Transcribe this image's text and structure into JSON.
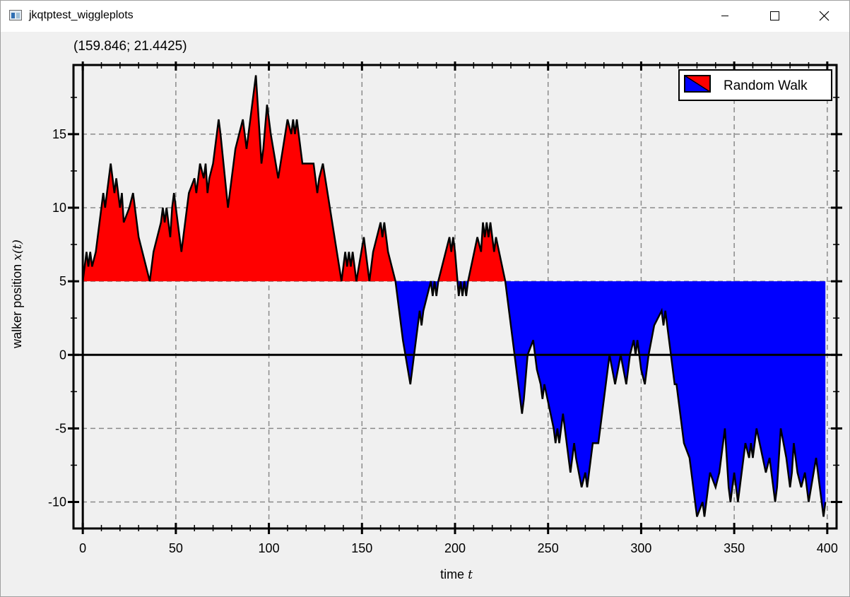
{
  "window": {
    "title": "jkqtptest_wiggleplots",
    "controls": [
      "minimize",
      "maximize",
      "close"
    ]
  },
  "coordinate_readout": "(159.846; 21.4425)",
  "chart_data": {
    "type": "area",
    "subtype": "wiggle",
    "xlabel": "time",
    "xlabel_var": "t",
    "ylabel": "walker position",
    "ylabel_var": "x(t)",
    "xlim": [
      -5,
      405
    ],
    "ylim": [
      -11.8,
      19.7
    ],
    "baseline": 5,
    "x_ticks": [
      0,
      50,
      100,
      150,
      200,
      250,
      300,
      350,
      400
    ],
    "x_tick_labels": [
      "0",
      "50",
      "100",
      "150",
      "200",
      "250",
      "300",
      "350",
      "400"
    ],
    "y_ticks": [
      -10,
      -5,
      0,
      5,
      10,
      15
    ],
    "y_tick_labels": [
      "-10",
      "-5",
      "0",
      "5",
      "10",
      "15"
    ],
    "grid": true,
    "legend_position": "top-right",
    "colors": {
      "above_baseline": "#ff0000",
      "below_baseline": "#0000ff",
      "line": "#000000"
    },
    "series": [
      {
        "name": "Random Walk",
        "x": [
          0,
          1,
          2,
          3,
          4,
          5,
          7,
          9,
          10,
          11,
          12,
          13,
          15,
          17,
          18,
          19,
          20,
          21,
          22,
          25,
          27,
          30,
          36,
          38,
          42,
          43,
          44,
          45,
          47,
          48,
          49,
          53,
          55,
          57,
          60,
          61,
          62,
          63,
          65,
          66,
          67,
          68,
          70,
          72,
          73,
          74,
          78,
          80,
          82,
          86,
          87,
          88,
          93,
          94,
          96,
          97,
          99,
          100,
          101,
          105,
          110,
          112,
          113,
          114,
          115,
          116,
          118,
          124,
          126,
          127,
          129,
          139,
          141,
          142,
          143,
          144,
          145,
          147,
          151,
          154,
          156,
          160,
          161,
          162,
          163,
          164,
          166,
          168,
          172,
          176,
          180,
          181,
          182,
          183,
          187,
          188,
          189,
          190,
          191,
          197,
          198,
          199,
          200,
          202,
          203,
          204,
          205,
          206,
          207,
          212,
          214,
          215,
          216,
          217,
          218,
          219,
          220,
          221,
          222,
          227,
          230,
          231,
          236,
          237,
          239,
          242,
          244,
          246,
          247,
          248,
          253,
          254,
          255,
          256,
          258,
          259,
          262,
          263,
          264,
          265,
          268,
          270,
          271,
          272,
          274,
          277,
          278,
          279,
          283,
          286,
          289,
          292,
          294,
          296,
          297,
          298,
          300,
          302,
          303,
          304,
          307,
          311,
          312,
          313,
          316,
          318,
          319,
          321,
          323,
          326,
          330,
          333,
          334,
          335,
          337,
          340,
          342,
          345,
          347,
          348,
          349,
          350,
          352,
          353,
          354,
          356,
          358,
          359,
          360,
          361,
          362,
          367,
          369,
          372,
          373,
          374,
          375,
          378,
          380,
          381,
          382,
          384,
          386,
          388,
          390,
          394,
          396,
          398,
          399
        ],
        "values": [
          5,
          6,
          7,
          6,
          7,
          6,
          7,
          9,
          10,
          11,
          10,
          11,
          13,
          11,
          12,
          11,
          10,
          11,
          9,
          10,
          11,
          8,
          5,
          7,
          9,
          10,
          9,
          10,
          8,
          10,
          11,
          7,
          9,
          11,
          12,
          11,
          12,
          13,
          12,
          13,
          11,
          12,
          13,
          15,
          16,
          15,
          10,
          12,
          14,
          16,
          15,
          14,
          19,
          17,
          13,
          14,
          17,
          16,
          15,
          12,
          16,
          15,
          16,
          15,
          16,
          15,
          13,
          13,
          11,
          12,
          13,
          5,
          7,
          6,
          7,
          6,
          7,
          5,
          8,
          5,
          7,
          9,
          8,
          9,
          8,
          7,
          6,
          5,
          1,
          -2,
          2,
          3,
          2,
          3,
          5,
          4,
          5,
          4,
          5,
          8,
          7,
          8,
          7,
          4,
          5,
          4,
          5,
          4,
          5,
          8,
          7,
          9,
          8,
          9,
          8,
          9,
          8,
          7,
          8,
          5,
          2,
          1,
          -4,
          -3,
          0,
          1,
          -1,
          -2,
          -3,
          -2,
          -5,
          -6,
          -5,
          -6,
          -4,
          -5,
          -8,
          -7,
          -6,
          -7,
          -9,
          -8,
          -9,
          -8,
          -6,
          -6,
          -5,
          -4,
          0,
          -2,
          0,
          -2,
          0,
          1,
          0,
          1,
          -1,
          -2,
          -1,
          0,
          2,
          3,
          2,
          3,
          0,
          -2,
          -2,
          -4,
          -6,
          -7,
          -11,
          -10,
          -11,
          -10,
          -8,
          -9,
          -8,
          -5,
          -9,
          -10,
          -9,
          -8,
          -10,
          -9,
          -8,
          -6,
          -7,
          -6,
          -7,
          -6,
          -5,
          -8,
          -7,
          -10,
          -9,
          -7,
          -5,
          -7,
          -9,
          -8,
          -6,
          -8,
          -9,
          -8,
          -10,
          -7,
          -9,
          -11,
          -10
        ]
      }
    ]
  },
  "legend": {
    "label": "Random Walk"
  }
}
